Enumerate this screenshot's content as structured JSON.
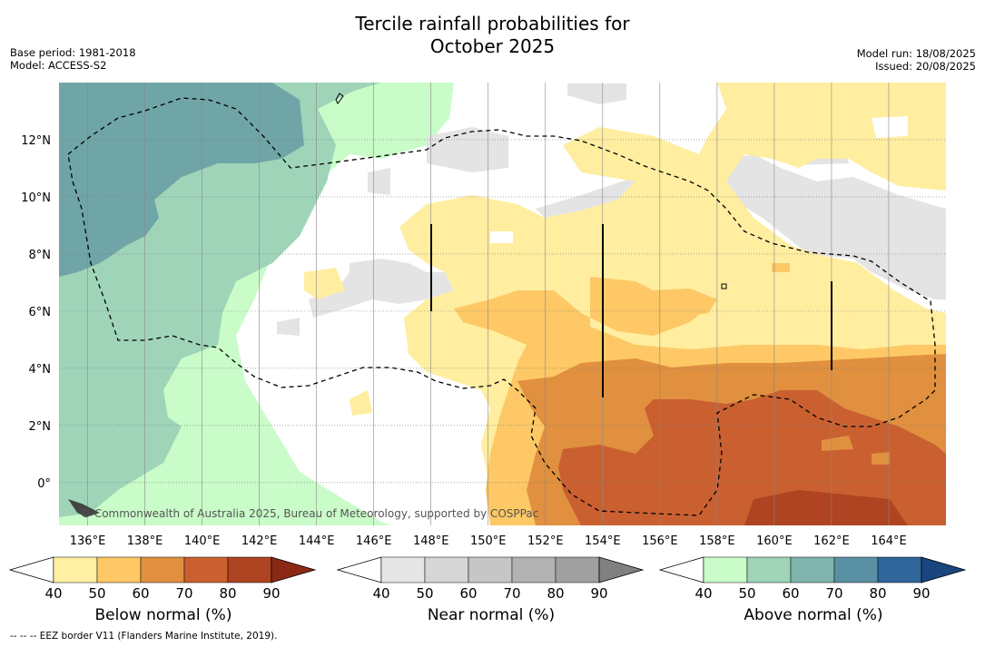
{
  "title_line1": "Tercile rainfall probabilities for",
  "title_line2": "October 2025",
  "base_period": "Base period: 1981-2018",
  "model": "Model: ACCESS-S2",
  "model_run": "Model run: 18/08/2025",
  "issued": "Issued: 20/08/2025",
  "copyright": "© Commonwealth of Australia 2025, Bureau of Meteorology, supported by COSPPac",
  "footer_note": "-- -- -- EEZ border V11 (Flanders Marine Institute, 2019).",
  "map": {
    "lon_range": [
      135,
      166
    ],
    "lat_range": [
      -1.5,
      14
    ],
    "lon_ticks": [
      "136°E",
      "138°E",
      "140°E",
      "142°E",
      "144°E",
      "146°E",
      "148°E",
      "150°E",
      "152°E",
      "154°E",
      "156°E",
      "158°E",
      "160°E",
      "162°E",
      "164°E"
    ],
    "lat_ticks": [
      "0°",
      "2°N",
      "4°N",
      "6°N",
      "8°N",
      "10°N",
      "12°N"
    ],
    "lon_values": [
      136,
      138,
      140,
      142,
      144,
      146,
      148,
      150,
      152,
      154,
      156,
      158,
      160,
      162,
      164
    ],
    "lat_values": [
      0,
      2,
      4,
      6,
      8,
      10,
      12
    ]
  },
  "colorbars": [
    {
      "title": "Below normal (%)",
      "ticks": [
        "40",
        "50",
        "60",
        "70",
        "80",
        "90"
      ],
      "colors": [
        "#fff0a3",
        "#fdc865",
        "#e0903f",
        "#ca6030",
        "#ae4421"
      ],
      "extend_color": "#8a2a15"
    },
    {
      "title": "Near normal (%)",
      "ticks": [
        "40",
        "50",
        "60",
        "70",
        "80",
        "90"
      ],
      "colors": [
        "#e6e6e6",
        "#d6d6d6",
        "#c6c6c6",
        "#b2b2b2",
        "#a0a0a0"
      ],
      "extend_color": "#808080"
    },
    {
      "title": "Above normal (%)",
      "ticks": [
        "40",
        "50",
        "60",
        "70",
        "80",
        "90"
      ],
      "colors": [
        "#c9fcc8",
        "#9fd4b8",
        "#7fb5ad",
        "#5a90a3",
        "#31669a"
      ],
      "extend_color": "#1a4680"
    }
  ]
}
